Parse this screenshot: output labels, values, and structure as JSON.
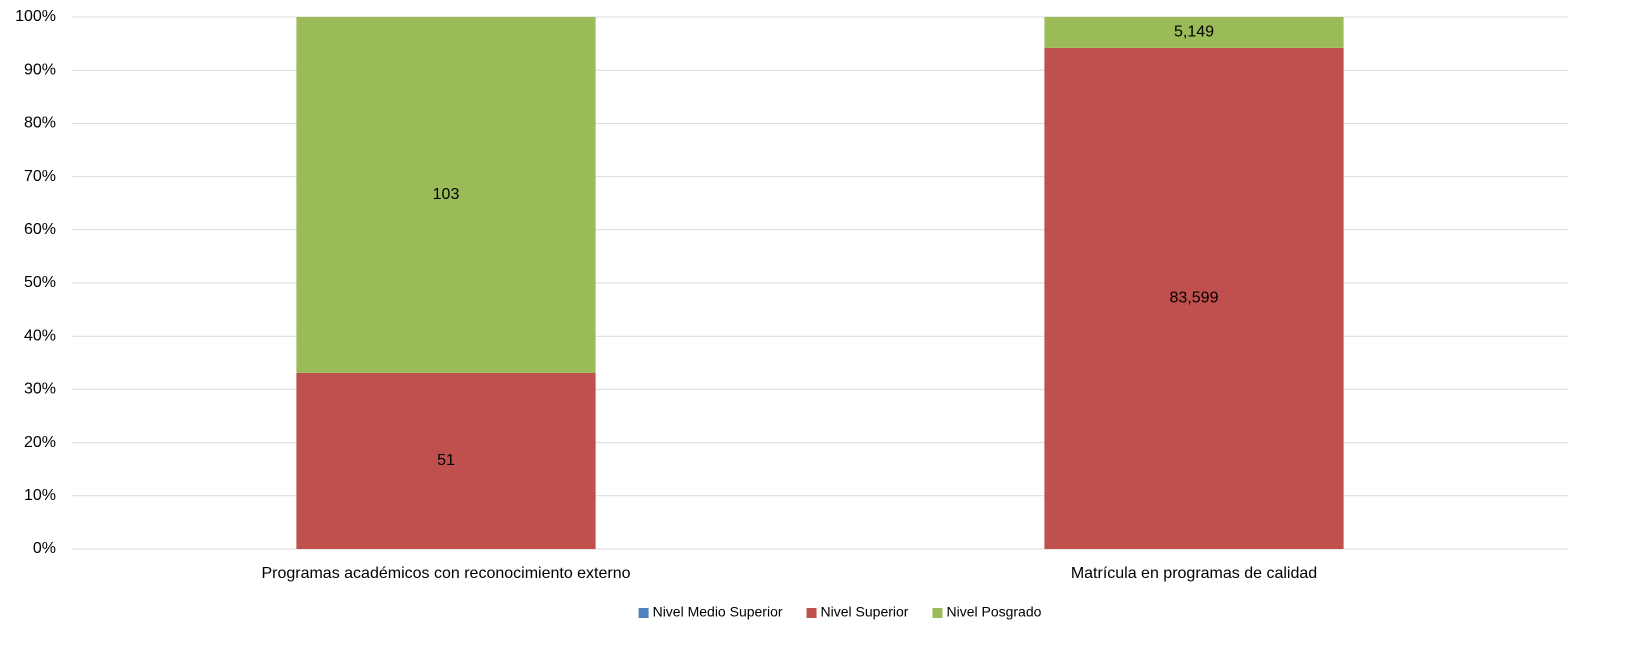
{
  "chart_data": {
    "type": "bar",
    "stacking": "percent",
    "categories": [
      "Programas académicos con reconocimiento externo",
      "Matrícula en programas de calidad"
    ],
    "series": [
      {
        "name": "Nivel Medio Superior",
        "color": "#4f81bd",
        "values": [
          0,
          0
        ]
      },
      {
        "name": "Nivel Superior",
        "color": "#c0504d",
        "values": [
          51,
          83599
        ],
        "value_labels": [
          "51",
          "83,599"
        ]
      },
      {
        "name": "Nivel Posgrado",
        "color": "#9bbb59",
        "values": [
          103,
          5149
        ],
        "value_labels": [
          "103",
          "5,149"
        ]
      }
    ],
    "ylim": [
      0,
      100
    ],
    "yticks": [
      {
        "value": 0,
        "label": "0%"
      },
      {
        "value": 10,
        "label": "10%"
      },
      {
        "value": 20,
        "label": "20%"
      },
      {
        "value": 30,
        "label": "30%"
      },
      {
        "value": 40,
        "label": "40%"
      },
      {
        "value": 50,
        "label": "50%"
      },
      {
        "value": 60,
        "label": "60%"
      },
      {
        "value": 70,
        "label": "70%"
      },
      {
        "value": 80,
        "label": "80%"
      },
      {
        "value": 90,
        "label": "90%"
      },
      {
        "value": 100,
        "label": "100%"
      }
    ],
    "grid": true,
    "legend": "bottom"
  }
}
